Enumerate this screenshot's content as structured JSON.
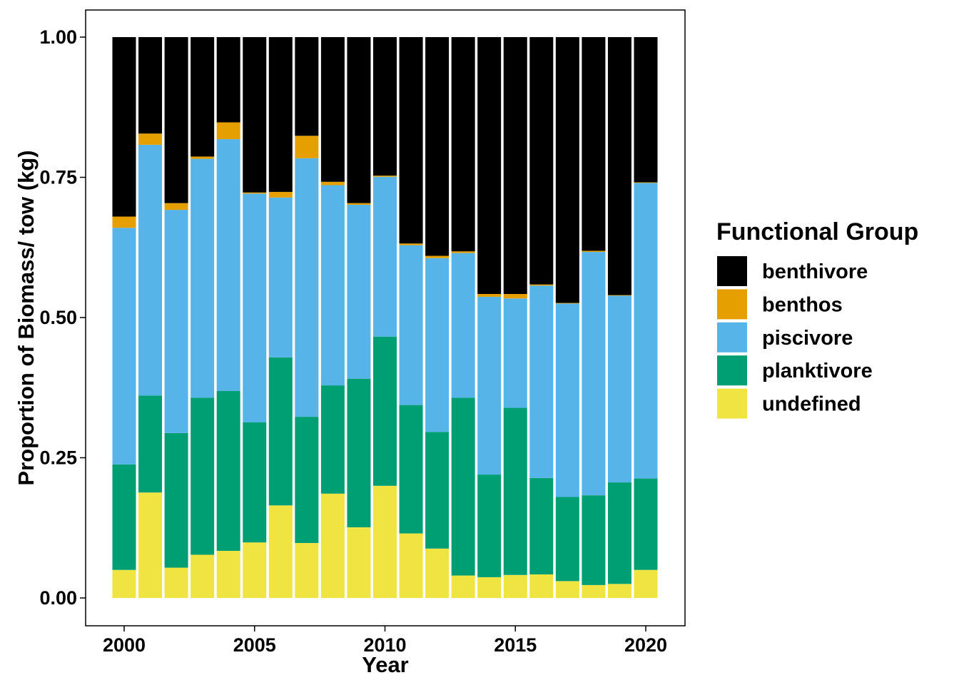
{
  "chart_data": {
    "type": "bar",
    "stacked": true,
    "title": "",
    "xlabel": "Year",
    "ylabel": "Proportion of Biomass/ tow (kg)",
    "ylim": [
      0,
      1
    ],
    "yticks": [
      "0.00",
      "0.25",
      "0.50",
      "0.75",
      "1.00"
    ],
    "xticks": [
      2000,
      2005,
      2010,
      2015,
      2020
    ],
    "categories": [
      2000,
      2001,
      2002,
      2003,
      2004,
      2005,
      2006,
      2007,
      2008,
      2009,
      2010,
      2011,
      2012,
      2013,
      2014,
      2015,
      2016,
      2017,
      2018,
      2019,
      2020
    ],
    "legend_title": "Functional Group",
    "legend_position": "right",
    "series": [
      {
        "name": "undefined",
        "color": "#F0E442",
        "values": [
          0.05,
          0.188,
          0.054,
          0.077,
          0.084,
          0.099,
          0.165,
          0.098,
          0.186,
          0.126,
          0.2,
          0.115,
          0.088,
          0.04,
          0.037,
          0.041,
          0.042,
          0.03,
          0.023,
          0.025,
          0.05
        ]
      },
      {
        "name": "planktivore",
        "color": "#009E73",
        "values": [
          0.188,
          0.173,
          0.24,
          0.28,
          0.285,
          0.214,
          0.264,
          0.225,
          0.193,
          0.265,
          0.266,
          0.229,
          0.208,
          0.317,
          0.183,
          0.298,
          0.172,
          0.15,
          0.16,
          0.181,
          0.163
        ]
      },
      {
        "name": "piscivore",
        "color": "#56B4E9",
        "values": [
          0.422,
          0.447,
          0.398,
          0.426,
          0.449,
          0.408,
          0.285,
          0.461,
          0.357,
          0.31,
          0.285,
          0.285,
          0.31,
          0.258,
          0.317,
          0.195,
          0.343,
          0.345,
          0.434,
          0.333,
          0.527
        ]
      },
      {
        "name": "benthos",
        "color": "#E69F00",
        "values": [
          0.02,
          0.02,
          0.012,
          0.004,
          0.03,
          0.002,
          0.01,
          0.04,
          0.006,
          0.003,
          0.002,
          0.003,
          0.004,
          0.003,
          0.005,
          0.008,
          0.002,
          0.001,
          0.002,
          0.001,
          0.001
        ]
      },
      {
        "name": "benthivore",
        "color": "#000000",
        "values": [
          0.32,
          0.172,
          0.296,
          0.213,
          0.152,
          0.277,
          0.276,
          0.176,
          0.258,
          0.296,
          0.247,
          0.368,
          0.39,
          0.382,
          0.458,
          0.458,
          0.441,
          0.474,
          0.381,
          0.46,
          0.259
        ]
      }
    ]
  }
}
